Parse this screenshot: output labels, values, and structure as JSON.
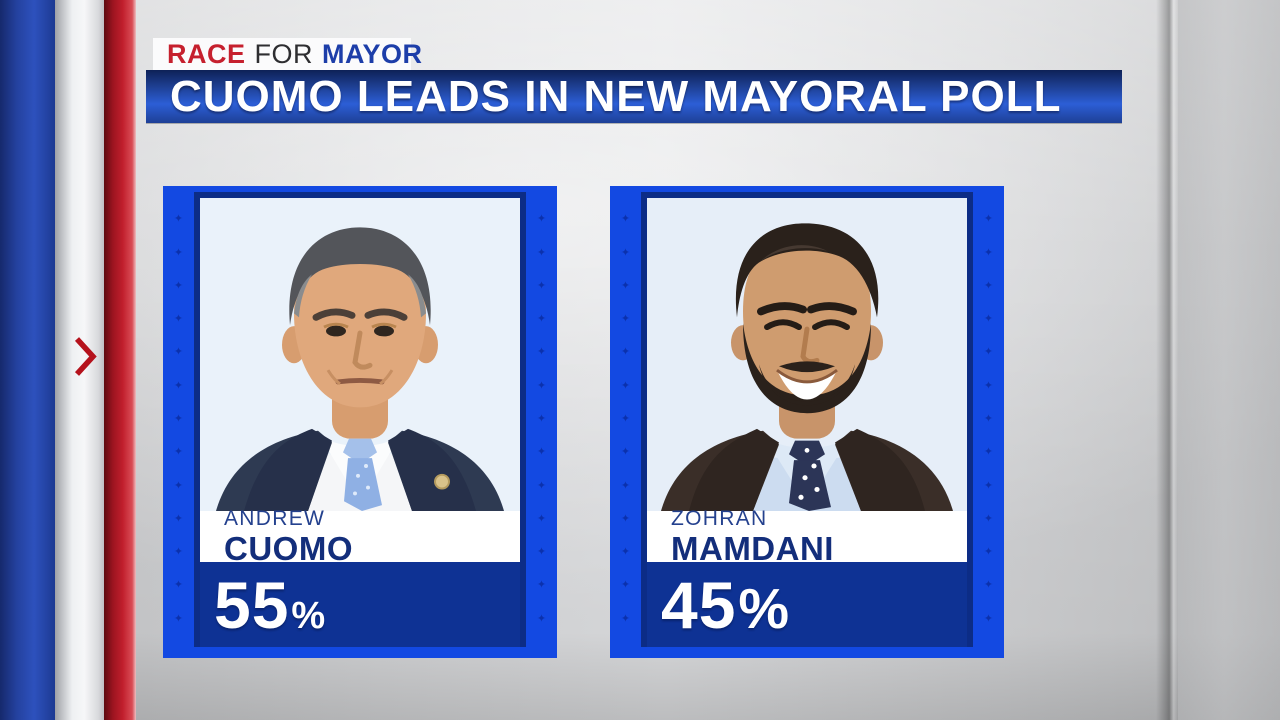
{
  "kicker": {
    "race": "RACE",
    "for": "FOR",
    "mayor": "MAYOR"
  },
  "headline": {
    "text": "CUOMO LEADS IN NEW MAYORAL POLL"
  },
  "poll": {
    "candidates": [
      {
        "first_name": "ANDREW",
        "last_name": "CUOMO",
        "value": "55",
        "unit": "%"
      },
      {
        "first_name": "ZOHRAN",
        "last_name": "MAMDANI",
        "value": "45",
        "unit": "%"
      }
    ]
  },
  "icons": {
    "star": "✦",
    "chevron_right": "❯"
  },
  "colors": {
    "frame_blue": "#1349e2",
    "panel_navy": "#0e3294",
    "inner_navy": "#0c2c86",
    "headline_top": "#0d2157",
    "headline_mid": "#2c5ed6",
    "race_red": "#c6202e",
    "mayor_blue": "#1d3ea9",
    "name_navy": "#132e7b",
    "backdrop_gray": "#d7d8da"
  },
  "chart_data": {
    "type": "bar",
    "title": "CUOMO LEADS IN NEW MAYORAL POLL",
    "subtitle": "RACE FOR MAYOR",
    "categories": [
      "Andrew Cuomo",
      "Zohran Mamdani"
    ],
    "values": [
      55,
      45
    ],
    "unit": "%",
    "ylim": [
      0,
      100
    ],
    "legend": "none",
    "notes": "Head-to-head poll graphic; each candidate shown as photo card with percentage label"
  }
}
